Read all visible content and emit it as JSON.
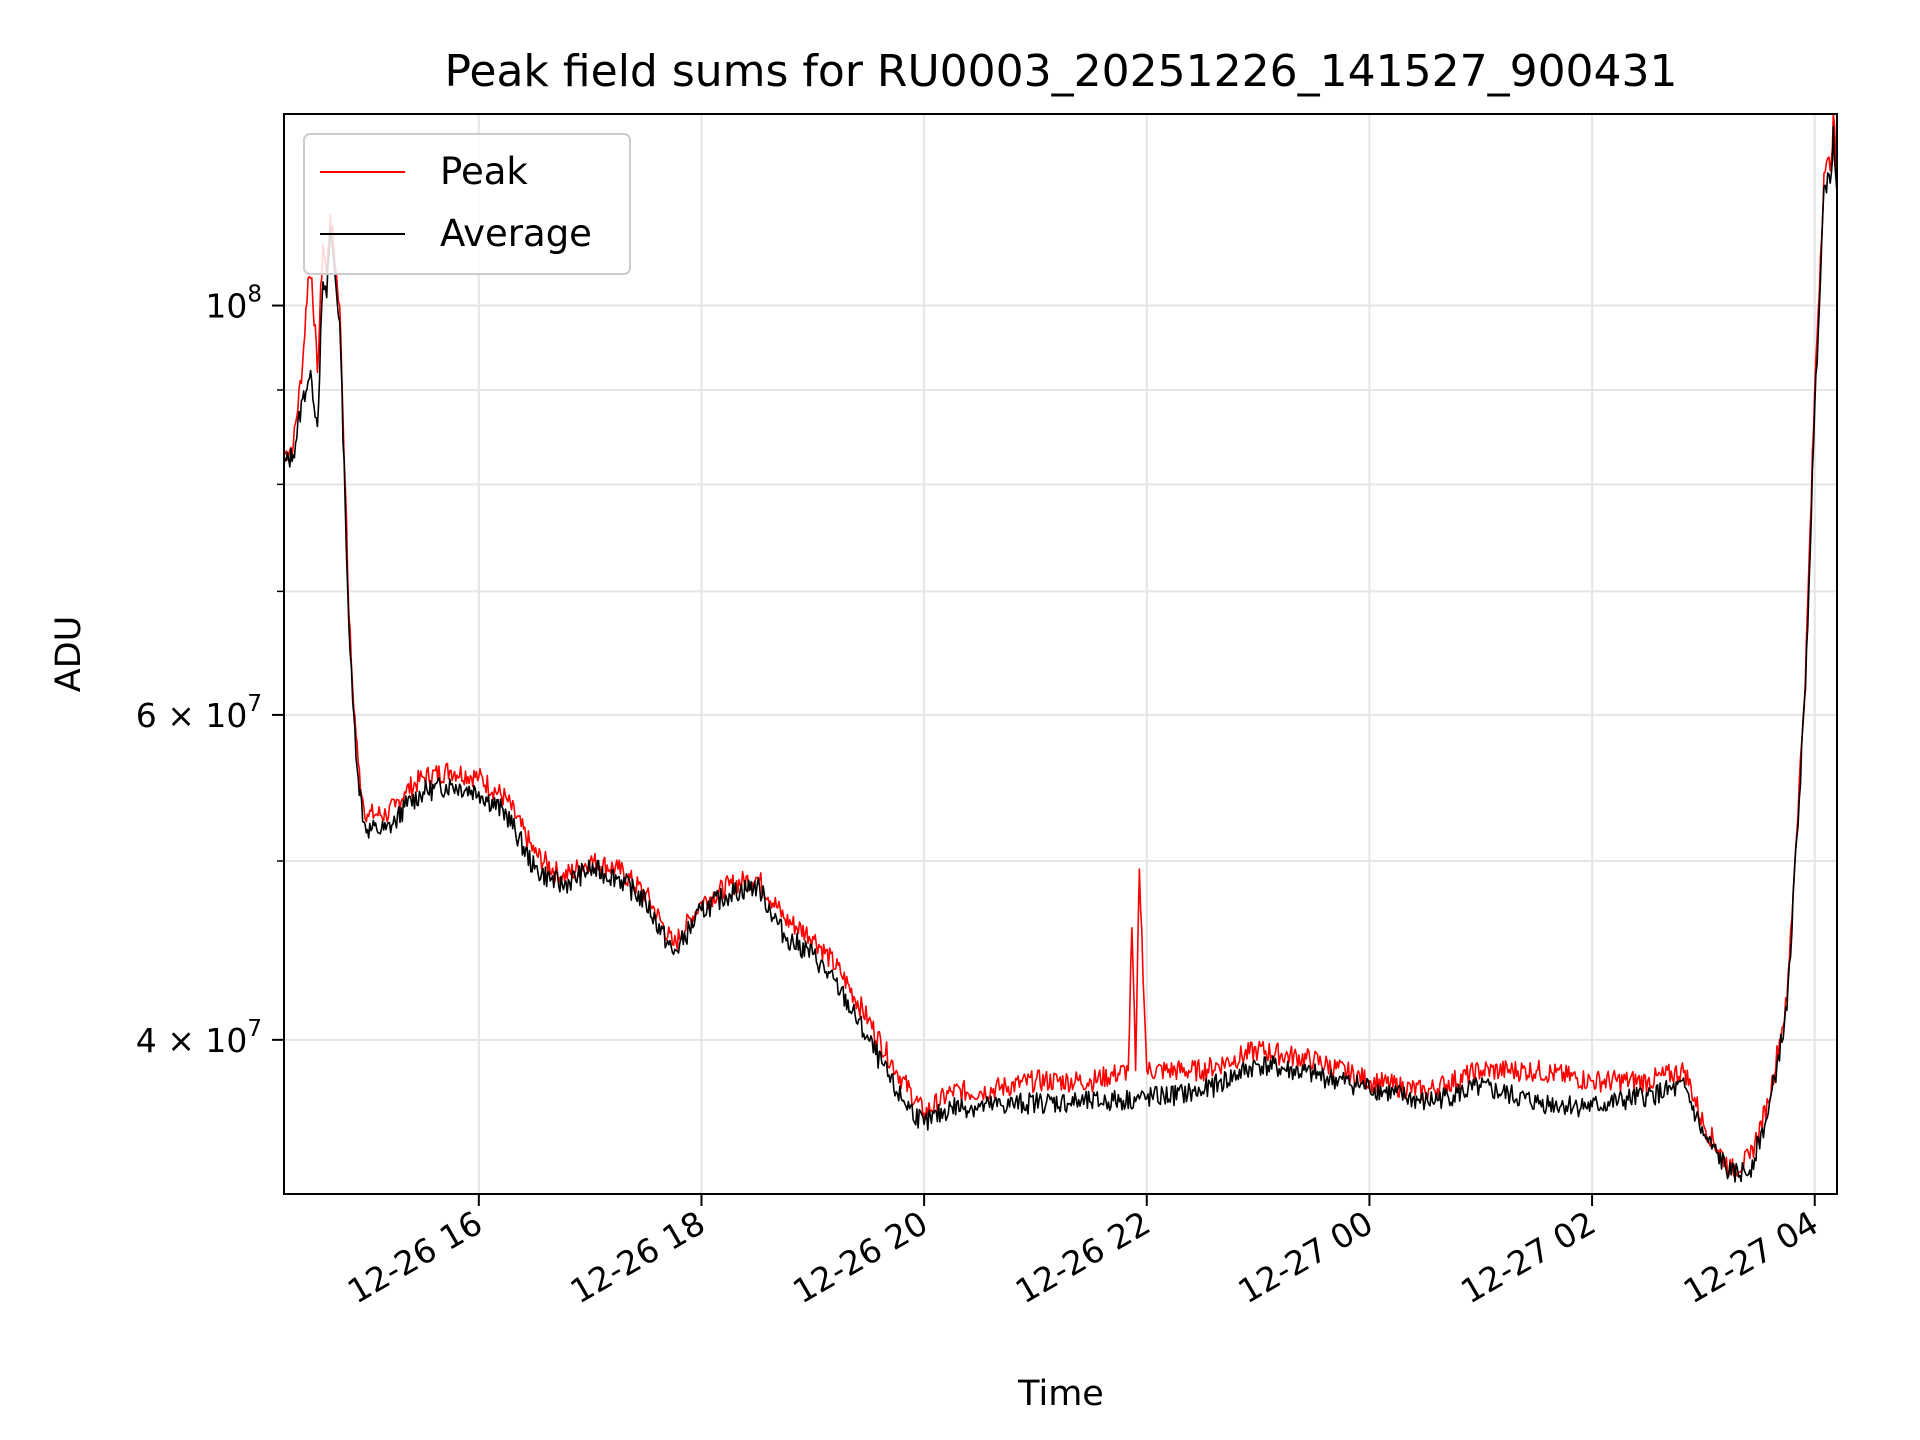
{
  "chart_data": {
    "type": "line",
    "title": "Peak field sums for RU0003_20251226_141527_900431",
    "xlabel": "Time",
    "ylabel": "ADU",
    "y_scale": "log",
    "ylim": [
      33000000,
      127000000
    ],
    "xlim": [
      "12-26 14:15",
      "12-27 04:12"
    ],
    "grid": true,
    "legend_position": "upper-left",
    "x_ticks": [
      {
        "value": "12-26 16:00",
        "label": "12-26 16"
      },
      {
        "value": "12-26 18:00",
        "label": "12-26 18"
      },
      {
        "value": "12-26 20:00",
        "label": "12-26 20"
      },
      {
        "value": "12-26 22:00",
        "label": "12-26 22"
      },
      {
        "value": "12-27 00:00",
        "label": "12-27 00"
      },
      {
        "value": "12-27 02:00",
        "label": "12-27 02"
      },
      {
        "value": "12-27 04:00",
        "label": "12-27 04"
      }
    ],
    "y_ticks": [
      {
        "value": 40000000,
        "mantissa": "4",
        "exponent": "7"
      },
      {
        "value": 60000000,
        "mantissa": "6",
        "exponent": "7"
      },
      {
        "value": 100000000,
        "mantissa": "",
        "exponent": "8"
      }
    ],
    "y_minor_ticks": [
      50000000,
      70000000,
      80000000,
      90000000
    ],
    "series": [
      {
        "name": "Peak",
        "color": "#ff0000",
        "x": [
          "12-26 14:15",
          "12-26 14:20",
          "12-26 14:25",
          "12-26 14:28",
          "12-26 14:30",
          "12-26 14:33",
          "12-26 14:36",
          "12-26 14:38",
          "12-26 14:40",
          "12-26 14:45",
          "12-26 14:48",
          "12-26 14:50",
          "12-26 14:52",
          "12-26 14:55",
          "12-26 14:58",
          "12-26 15:00",
          "12-26 15:05",
          "12-26 15:10",
          "12-26 15:15",
          "12-26 15:20",
          "12-26 15:30",
          "12-26 15:45",
          "12-26 16:00",
          "12-26 16:15",
          "12-26 16:30",
          "12-26 16:45",
          "12-26 17:00",
          "12-26 17:15",
          "12-26 17:30",
          "12-26 17:45",
          "12-26 18:00",
          "12-26 18:15",
          "12-26 18:30",
          "12-26 18:45",
          "12-26 19:00",
          "12-26 19:15",
          "12-26 19:30",
          "12-26 19:45",
          "12-26 20:00",
          "12-26 20:15",
          "12-26 20:30",
          "12-26 21:00",
          "12-26 21:30",
          "12-26 21:50",
          "12-26 21:52",
          "12-26 21:54",
          "12-26 21:56",
          "12-26 22:00",
          "12-26 22:30",
          "12-26 23:00",
          "12-26 23:30",
          "12-27 00:00",
          "12-27 00:30",
          "12-27 01:00",
          "12-27 01:30",
          "12-27 02:00",
          "12-27 02:30",
          "12-27 02:50",
          "12-27 03:00",
          "12-27 03:15",
          "12-27 03:25",
          "12-27 03:35",
          "12-27 03:45",
          "12-27 03:55",
          "12-27 04:00",
          "12-27 04:05",
          "12-27 04:09",
          "12-27 04:10",
          "12-27 04:12"
        ],
        "y": [
          83000000,
          84000000,
          93000000,
          103500000,
          103500000,
          92000000,
          108000000,
          104000000,
          112000000,
          100000000,
          80000000,
          68000000,
          62000000,
          56500000,
          53500000,
          53000000,
          53000000,
          53000000,
          53500000,
          54500000,
          55500000,
          56000000,
          55500000,
          54000000,
          50500000,
          49000000,
          50000000,
          49500000,
          48000000,
          45000000,
          47500000,
          48500000,
          49000000,
          46500000,
          45500000,
          43500000,
          41000000,
          38500000,
          36500000,
          37500000,
          37500000,
          38000000,
          38000000,
          38500000,
          46000000,
          38500000,
          49500000,
          38500000,
          38500000,
          39500000,
          39000000,
          38000000,
          37500000,
          38500000,
          38500000,
          38000000,
          38000000,
          38500000,
          36000000,
          34000000,
          34500000,
          37000000,
          42000000,
          63000000,
          90000000,
          118000000,
          120000000,
          127000000,
          117000000
        ]
      },
      {
        "name": "Average",
        "color": "#000000",
        "x": [
          "12-26 14:15",
          "12-26 14:20",
          "12-26 14:25",
          "12-26 14:28",
          "12-26 14:30",
          "12-26 14:33",
          "12-26 14:36",
          "12-26 14:38",
          "12-26 14:40",
          "12-26 14:45",
          "12-26 14:48",
          "12-26 14:50",
          "12-26 14:52",
          "12-26 14:55",
          "12-26 14:58",
          "12-26 15:00",
          "12-26 15:05",
          "12-26 15:10",
          "12-26 15:15",
          "12-26 15:20",
          "12-26 15:30",
          "12-26 15:45",
          "12-26 16:00",
          "12-26 16:15",
          "12-26 16:30",
          "12-26 16:45",
          "12-26 17:00",
          "12-26 17:15",
          "12-26 17:30",
          "12-26 17:45",
          "12-26 18:00",
          "12-26 18:15",
          "12-26 18:30",
          "12-26 18:45",
          "12-26 19:00",
          "12-26 19:15",
          "12-26 19:30",
          "12-26 19:45",
          "12-26 20:00",
          "12-26 20:15",
          "12-26 20:30",
          "12-26 21:00",
          "12-26 21:30",
          "12-26 22:00",
          "12-26 22:30",
          "12-26 23:00",
          "12-26 23:30",
          "12-27 00:00",
          "12-27 00:30",
          "12-27 01:00",
          "12-27 01:30",
          "12-27 02:00",
          "12-27 02:30",
          "12-27 02:50",
          "12-27 03:00",
          "12-27 03:15",
          "12-27 03:25",
          "12-27 03:35",
          "12-27 03:45",
          "12-27 03:55",
          "12-27 04:00",
          "12-27 04:05",
          "12-27 04:09",
          "12-27 04:10",
          "12-27 04:12"
        ],
        "y": [
          82000000,
          83000000,
          89000000,
          91000000,
          91000000,
          86000000,
          103000000,
          101000000,
          110000000,
          98000000,
          78000000,
          67000000,
          61000000,
          55500000,
          52500000,
          52000000,
          52000000,
          52000000,
          52500000,
          53500000,
          54500000,
          55000000,
          54500000,
          53000000,
          49500000,
          48500000,
          49500000,
          49000000,
          47500000,
          44500000,
          47000000,
          48000000,
          48500000,
          45500000,
          44500000,
          42500000,
          40000000,
          37500000,
          36000000,
          36800000,
          36800000,
          37000000,
          37000000,
          37200000,
          37500000,
          38800000,
          38300000,
          37700000,
          37000000,
          37700000,
          37000000,
          36800000,
          37300000,
          37700000,
          35500000,
          33800000,
          34000000,
          36500000,
          41500000,
          62000000,
          88000000,
          116000000,
          118000000,
          125000000,
          115000000
        ]
      }
    ]
  }
}
